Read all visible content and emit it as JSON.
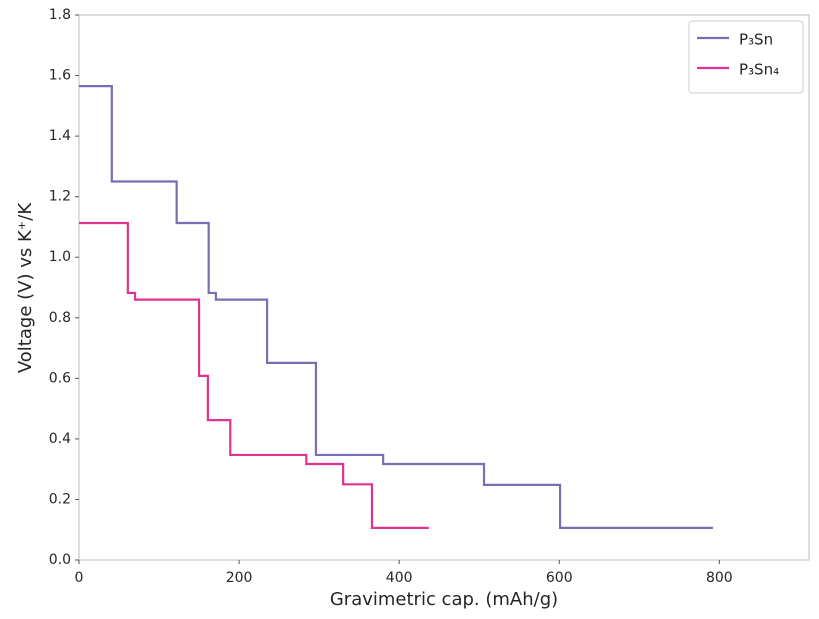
{
  "chart_data": {
    "type": "line",
    "drawstyle": "steps-post",
    "xlabel": "Gravimetric cap. (mAh/g)",
    "ylabel": "Voltage (V) vs K⁺/K",
    "xlim": [
      0,
      912
    ],
    "ylim": [
      0,
      1.8
    ],
    "xticks": [
      0,
      200,
      400,
      600,
      800
    ],
    "yticks": [
      {
        "value": 0,
        "label": "0.0"
      },
      0.2,
      0.4,
      0.6,
      0.8,
      {
        "value": 1,
        "label": "1.0"
      },
      1.2,
      1.4,
      1.6,
      1.8
    ],
    "grid": false,
    "legend": "upper right",
    "series": [
      {
        "name": "P₃Sn",
        "color": "#7b6cb4",
        "x": [
          0,
          41,
          122,
          162,
          171,
          235,
          296,
          380,
          506,
          601,
          792
        ],
        "values": [
          1.565,
          1.25,
          1.113,
          0.882,
          0.86,
          0.651,
          0.347,
          0.317,
          0.248,
          0.106,
          0.106
        ]
      },
      {
        "name": "P₃Sn₄",
        "color": "#e0328f",
        "x": [
          0,
          61,
          70,
          150,
          161,
          189,
          284,
          330,
          366,
          437
        ],
        "values": [
          1.113,
          0.882,
          0.86,
          0.608,
          0.462,
          0.347,
          0.317,
          0.25,
          0.106,
          0.106
        ]
      }
    ]
  }
}
